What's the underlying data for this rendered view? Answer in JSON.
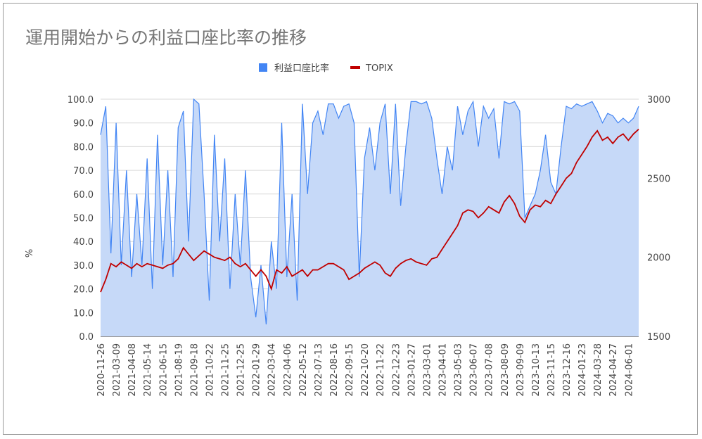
{
  "chart_data": {
    "type": "line",
    "title": "運用開始からの利益口座比率の推移",
    "y_label": "%",
    "categories": [
      "2020-11-26",
      null,
      null,
      "2021-03-09",
      null,
      null,
      "2021-04-08",
      null,
      null,
      "2021-05-14",
      null,
      null,
      "2021-06-15",
      null,
      null,
      "2021-08-19",
      null,
      null,
      "2021-09-18",
      null,
      null,
      "2021-10-22",
      null,
      null,
      "2021-11-25",
      null,
      null,
      "2021-12-25",
      null,
      null,
      "2022-01-29",
      null,
      null,
      "2022-03-04",
      null,
      null,
      "2022-04-06",
      null,
      null,
      "2022-05-12",
      null,
      null,
      "2022-07-13",
      null,
      null,
      "2022-08-16",
      null,
      null,
      "2022-09-15",
      null,
      null,
      "2022-10-20",
      null,
      null,
      "2022-11-22",
      null,
      null,
      "2022-12-23",
      null,
      null,
      "2023-01-27",
      null,
      null,
      "2023-03-01",
      null,
      null,
      "2023-04-01",
      null,
      null,
      "2023-05-03",
      null,
      null,
      "2023-06-07",
      null,
      null,
      "2023-07-08",
      null,
      null,
      "2023-08-09",
      null,
      null,
      "2023-09-09",
      null,
      null,
      "2023-10-13",
      null,
      null,
      "2023-11-15",
      null,
      null,
      "2023-12-16",
      null,
      null,
      "2024-01-23",
      null,
      null,
      "2024-03-28",
      null,
      null,
      "2024-04-27",
      null,
      null,
      "2024-06-01",
      null,
      null
    ],
    "series": [
      {
        "name": "利益口座比率",
        "color": "#4285f4",
        "fill": "#c6d9f8",
        "axis": "y",
        "values": [
          85,
          97,
          35,
          90,
          30,
          70,
          25,
          60,
          30,
          75,
          20,
          85,
          30,
          70,
          25,
          88,
          95,
          40,
          100,
          98,
          60,
          15,
          85,
          40,
          75,
          20,
          60,
          30,
          70,
          25,
          8,
          30,
          5,
          40,
          20,
          90,
          25,
          60,
          15,
          98,
          60,
          90,
          95,
          85,
          98,
          98,
          92,
          97,
          98,
          90,
          25,
          75,
          88,
          70,
          90,
          98,
          60,
          98,
          55,
          80,
          99,
          99,
          98,
          99,
          92,
          75,
          60,
          80,
          70,
          97,
          85,
          95,
          99,
          80,
          97,
          92,
          96,
          75,
          99,
          98,
          99,
          95,
          50,
          55,
          60,
          70,
          85,
          65,
          60,
          80,
          97,
          96,
          98,
          97,
          98,
          99,
          95,
          90,
          94,
          93,
          90,
          92,
          90,
          92,
          97
        ]
      },
      {
        "name": "TOPIX",
        "color": "#c00000",
        "axis": "y2",
        "values": [
          1780,
          1860,
          1960,
          1940,
          1970,
          1950,
          1930,
          1960,
          1940,
          1960,
          1950,
          1940,
          1930,
          1950,
          1960,
          1990,
          2060,
          2020,
          1980,
          2010,
          2040,
          2020,
          2000,
          1990,
          1980,
          2000,
          1960,
          1940,
          1960,
          1920,
          1880,
          1920,
          1880,
          1800,
          1920,
          1900,
          1940,
          1880,
          1900,
          1920,
          1880,
          1920,
          1920,
          1940,
          1960,
          1960,
          1940,
          1920,
          1860,
          1880,
          1900,
          1930,
          1950,
          1970,
          1950,
          1900,
          1880,
          1930,
          1960,
          1980,
          1990,
          1970,
          1960,
          1950,
          1990,
          2000,
          2050,
          2100,
          2150,
          2200,
          2280,
          2300,
          2290,
          2250,
          2280,
          2320,
          2300,
          2280,
          2350,
          2390,
          2340,
          2260,
          2220,
          2300,
          2330,
          2320,
          2360,
          2340,
          2400,
          2450,
          2500,
          2530,
          2600,
          2650,
          2700,
          2760,
          2800,
          2740,
          2760,
          2720,
          2760,
          2780,
          2740,
          2780,
          2810
        ]
      }
    ],
    "ylim": [
      0,
      100
    ],
    "yticks": [
      {
        "value": 0,
        "label": "0.0"
      },
      {
        "value": 10,
        "label": "10.0"
      },
      {
        "value": 20,
        "label": "20.0"
      },
      {
        "value": 30,
        "label": "30.0"
      },
      {
        "value": 40,
        "label": "40.0"
      },
      {
        "value": 50,
        "label": "50.0"
      },
      {
        "value": 60,
        "label": "60.0"
      },
      {
        "value": 70,
        "label": "70.0"
      },
      {
        "value": 80,
        "label": "80.0"
      },
      {
        "value": 90,
        "label": "90.0"
      },
      {
        "value": 100,
        "label": "100.0"
      }
    ],
    "y2lim": [
      1500,
      3000
    ],
    "y2ticks": [
      1500,
      2000,
      2500,
      3000
    ],
    "grid": true,
    "legend": "top"
  }
}
